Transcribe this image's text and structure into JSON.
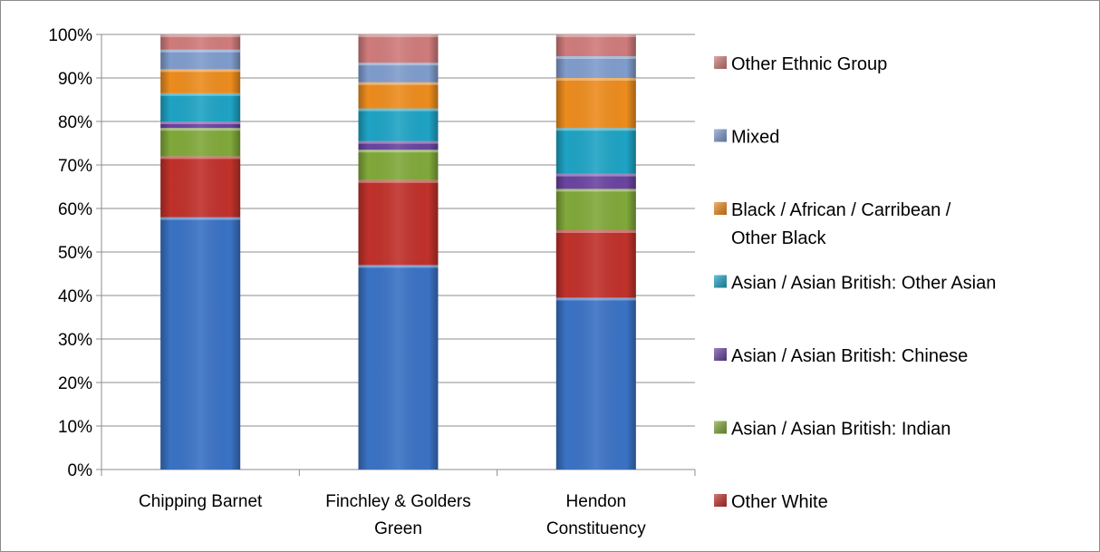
{
  "chart_data": {
    "type": "bar",
    "stacked": true,
    "percent": true,
    "categories": [
      "Chipping Barnet",
      "Finchley & Golders Green",
      "Hendon Constituency"
    ],
    "category_lines": [
      [
        "Chipping Barnet"
      ],
      [
        "Finchley & Golders",
        "Green"
      ],
      [
        "Hendon",
        "Constituency"
      ]
    ],
    "ylim": [
      0,
      100
    ],
    "yticks": [
      "0%",
      "10%",
      "20%",
      "30%",
      "40%",
      "50%",
      "60%",
      "70%",
      "80%",
      "90%",
      "100%"
    ],
    "grid": true,
    "legend_position": "right",
    "series": [
      {
        "name": "",
        "color": "#3a72c4",
        "values": [
          58.0,
          47.0,
          39.5
        ]
      },
      {
        "name": "Other White",
        "color": "#c0312b",
        "values": [
          14.0,
          19.5,
          15.5
        ]
      },
      {
        "name": "Asian / Asian British: Indian",
        "color": "#80a83a",
        "values": [
          6.5,
          7.0,
          9.5
        ]
      },
      {
        "name": "Asian / Asian British: Chinese",
        "color": "#6a44a0",
        "values": [
          1.5,
          2.0,
          3.5
        ]
      },
      {
        "name": "Asian / Asian British: Other Asian",
        "color": "#1fa3c4",
        "values": [
          6.5,
          7.5,
          10.5
        ]
      },
      {
        "name": "Black / African / Carribean / Other Black",
        "color": "#ec8c1e",
        "values": [
          5.5,
          6.0,
          11.5
        ]
      },
      {
        "name": "Mixed",
        "color": "#7f9ccc",
        "values": [
          4.5,
          4.5,
          5.0
        ]
      },
      {
        "name": "Other Ethnic Group",
        "color": "#cf7b7b",
        "values": [
          3.5,
          6.5,
          5.0
        ]
      }
    ],
    "legend_entries": [
      {
        "lines": [
          "Other Ethnic Group"
        ],
        "color": "#cf7b7b"
      },
      {
        "lines": [
          "Mixed"
        ],
        "color": "#7f9ccc"
      },
      {
        "lines": [
          "Black / African / Carribean /",
          "Other Black"
        ],
        "color": "#ec8c1e"
      },
      {
        "lines": [
          "Asian / Asian British: Other Asian"
        ],
        "color": "#1fa3c4"
      },
      {
        "lines": [
          "Asian / Asian British: Chinese"
        ],
        "color": "#6a44a0"
      },
      {
        "lines": [
          "Asian / Asian British: Indian"
        ],
        "color": "#80a83a"
      },
      {
        "lines": [
          "Other White"
        ],
        "color": "#c0312b"
      }
    ]
  }
}
